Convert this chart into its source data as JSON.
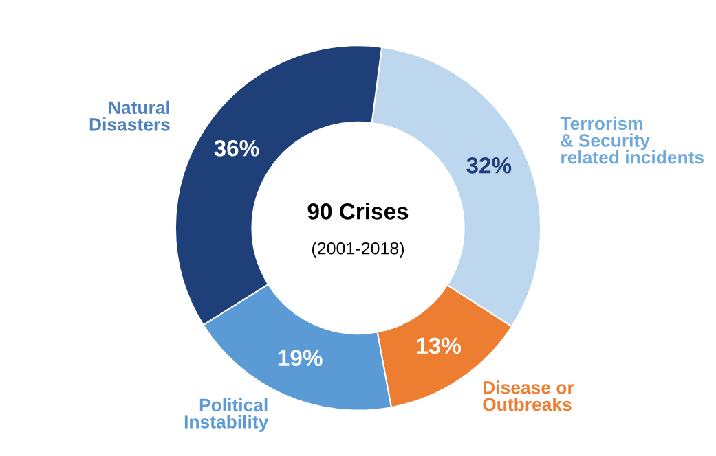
{
  "chart_data": {
    "type": "donut",
    "categories": [
      "Terrorism\n& Security\nrelated incidents",
      "Disease or\nOutbreaks",
      "Political\nInstability",
      "Natural\nDisasters"
    ],
    "values": [
      32,
      13,
      19,
      36
    ],
    "colors": [
      "#bdd7ee",
      "#ed7d31",
      "#5b9bd5",
      "#1f3f78"
    ],
    "value_labels": [
      "32%",
      "13%",
      "19%",
      "36%"
    ],
    "annotations": [
      "90 Crises",
      "(2001-2018)"
    ],
    "legend": false
  }
}
